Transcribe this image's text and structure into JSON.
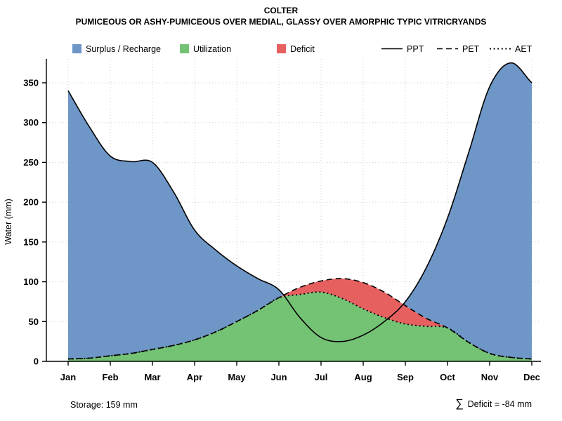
{
  "chart_data": {
    "type": "area",
    "title": "COLTER",
    "subtitle": "PUMICEOUS OR ASHY-PUMICEOUS OVER MEDIAL, GLASSY OVER AMORPHIC TYPIC VITRICRYANDS",
    "ylabel": "Water (mm)",
    "ylim": [
      0,
      380
    ],
    "yticks": [
      0,
      50,
      100,
      150,
      200,
      250,
      300,
      350
    ],
    "x_ticklabels": [
      "Jan",
      "Feb",
      "Mar",
      "Apr",
      "May",
      "Jun",
      "Jul",
      "Aug",
      "Sep",
      "Oct",
      "Nov",
      "Dec"
    ],
    "grid": true,
    "colors": {
      "surplus": "#6e96c6",
      "utilization": "#74c374",
      "deficit": "#e66060"
    },
    "series": [
      {
        "name": "PPT",
        "style": "solid",
        "points": [
          [
            0,
            340
          ],
          [
            0.5,
            295
          ],
          [
            1,
            258
          ],
          [
            1.5,
            251
          ],
          [
            2,
            250
          ],
          [
            2.5,
            213
          ],
          [
            3,
            165
          ],
          [
            3.5,
            140
          ],
          [
            4,
            120
          ],
          [
            4.5,
            104
          ],
          [
            5,
            90
          ],
          [
            5.5,
            55
          ],
          [
            6,
            30
          ],
          [
            6.5,
            25
          ],
          [
            7,
            33
          ],
          [
            7.5,
            50
          ],
          [
            8,
            75
          ],
          [
            8.5,
            118
          ],
          [
            9,
            180
          ],
          [
            9.5,
            262
          ],
          [
            10,
            345
          ],
          [
            10.5,
            375
          ],
          [
            11,
            350
          ]
        ]
      },
      {
        "name": "PET",
        "style": "dashed",
        "points": [
          [
            0,
            3
          ],
          [
            0.5,
            4
          ],
          [
            1,
            7
          ],
          [
            1.5,
            10
          ],
          [
            2,
            15
          ],
          [
            2.5,
            20
          ],
          [
            3,
            27
          ],
          [
            3.5,
            37
          ],
          [
            4,
            50
          ],
          [
            4.5,
            64
          ],
          [
            5,
            80
          ],
          [
            5.5,
            93
          ],
          [
            6,
            101
          ],
          [
            6.5,
            104
          ],
          [
            7,
            99
          ],
          [
            7.5,
            87
          ],
          [
            8,
            70
          ],
          [
            8.5,
            54
          ],
          [
            9,
            42
          ],
          [
            9.5,
            24
          ],
          [
            10,
            10
          ],
          [
            10.5,
            5
          ],
          [
            11,
            3
          ]
        ]
      },
      {
        "name": "AET",
        "style": "dotted",
        "points": [
          [
            0,
            3
          ],
          [
            0.5,
            4
          ],
          [
            1,
            7
          ],
          [
            1.5,
            10
          ],
          [
            2,
            15
          ],
          [
            2.5,
            20
          ],
          [
            3,
            27
          ],
          [
            3.5,
            37
          ],
          [
            4,
            50
          ],
          [
            4.5,
            64
          ],
          [
            5,
            80
          ],
          [
            5.5,
            84
          ],
          [
            6,
            87
          ],
          [
            6.5,
            79
          ],
          [
            7,
            66
          ],
          [
            7.5,
            55
          ],
          [
            8,
            47
          ],
          [
            8.5,
            44
          ],
          [
            9,
            42
          ],
          [
            9.5,
            24
          ],
          [
            10,
            10
          ],
          [
            10.5,
            5
          ],
          [
            11,
            3
          ]
        ]
      }
    ],
    "regions": [
      {
        "name": "utilization",
        "type": "under",
        "top": "AET",
        "color_key": "utilization"
      },
      {
        "name": "deficit",
        "type": "between",
        "top": "PET",
        "bottom": "AET",
        "color_key": "deficit"
      },
      {
        "name": "surplus",
        "type": "between",
        "top": "PPT",
        "bottom": "PET",
        "color_key": "surplus"
      }
    ],
    "legend": {
      "surplus": "Surplus / Recharge",
      "utilization": "Utilization",
      "deficit": "Deficit",
      "ppt": "PPT",
      "pet": "PET",
      "aet": "AET"
    },
    "annotations": {
      "storage": "Storage: 159 mm",
      "sigma": "∑",
      "deficit_total": "Deficit = -84 mm"
    },
    "storage_mm": 159,
    "deficit_sum_mm": -84
  }
}
